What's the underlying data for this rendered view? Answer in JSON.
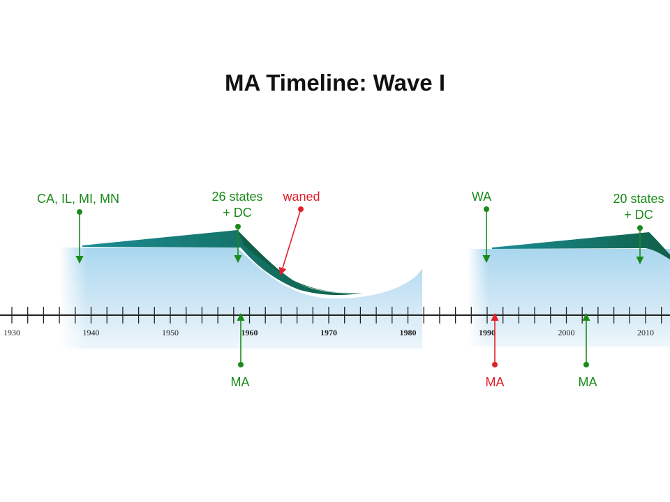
{
  "title": "MA Timeline: Wave I",
  "colors": {
    "green": "#1a8a1a",
    "red": "#e0202a",
    "axis": "#222222",
    "wave_dark": "#0f6048",
    "wave_teal": "#1c8c94",
    "sky_light": "#e4f1fa",
    "sky_mid": "#a9d6ee"
  },
  "timeline": {
    "years": [
      "1930",
      "1940",
      "1950",
      "1960",
      "1970",
      "1980",
      "1990",
      "2000",
      "2010"
    ]
  },
  "annotations": {
    "ca_il_mi_mn": "CA, IL, MI, MN",
    "states26_line1": "26 states",
    "states26_line2": "+ DC",
    "waned": "waned",
    "wa": "WA",
    "states20_line1": "20 states",
    "states20_line2": "+ DC",
    "ma_1960": "MA",
    "ma_1990": "MA",
    "ma_2000": "MA"
  }
}
